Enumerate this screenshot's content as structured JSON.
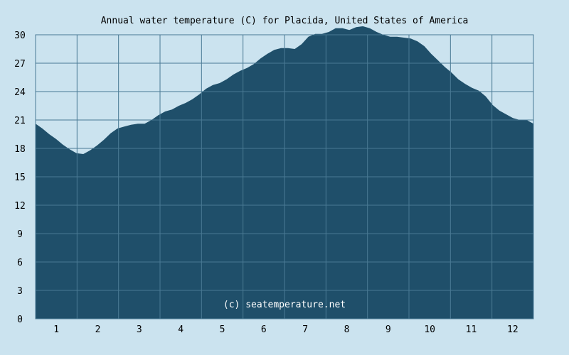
{
  "chart_data": {
    "type": "area",
    "title": "Annual water temperature (C) for Placida, United States of America",
    "xlabel": "",
    "ylabel": "",
    "x_tick_labels": [
      "1",
      "2",
      "3",
      "4",
      "5",
      "6",
      "7",
      "8",
      "9",
      "10",
      "11",
      "12"
    ],
    "y_ticks": [
      0,
      3,
      6,
      9,
      12,
      15,
      18,
      21,
      24,
      27,
      30
    ],
    "ylim": [
      0,
      30
    ],
    "xlim": [
      0,
      365
    ],
    "grid": true,
    "watermark": "(c) seatemperature.net",
    "colors": {
      "background": "#cbe3ef",
      "fill": "#1f4f6a",
      "grid": "#4a7a94"
    },
    "series": [
      {
        "x": [
          0,
          5,
          10,
          15,
          20,
          25,
          30,
          35,
          40,
          45,
          50,
          55,
          60,
          65,
          70,
          75,
          80,
          85,
          90,
          95,
          100,
          105,
          110,
          115,
          120,
          125,
          130,
          135,
          140,
          145,
          150,
          155,
          160,
          165,
          170,
          175,
          180,
          185,
          190,
          195,
          200,
          205,
          210,
          215,
          220,
          225,
          230,
          235,
          240,
          245,
          250,
          255,
          260,
          265,
          270,
          275,
          280,
          285,
          290,
          295,
          300,
          305,
          310,
          315,
          320,
          325,
          330,
          335,
          340,
          345,
          350,
          355,
          360,
          365
        ],
        "values": [
          20.6,
          20.1,
          19.5,
          19.0,
          18.4,
          17.9,
          17.5,
          17.4,
          17.8,
          18.3,
          18.9,
          19.6,
          20.1,
          20.3,
          20.5,
          20.6,
          20.6,
          21.0,
          21.5,
          21.9,
          22.1,
          22.5,
          22.8,
          23.2,
          23.7,
          24.3,
          24.7,
          24.9,
          25.3,
          25.8,
          26.2,
          26.5,
          26.9,
          27.5,
          28.0,
          28.4,
          28.6,
          28.6,
          28.5,
          29.0,
          29.8,
          30.1,
          30.1,
          30.3,
          30.7,
          30.7,
          30.5,
          30.8,
          30.9,
          30.7,
          30.3,
          30.0,
          29.8,
          29.8,
          29.7,
          29.6,
          29.3,
          28.8,
          28.0,
          27.3,
          26.6,
          26.0,
          25.3,
          24.8,
          24.4,
          24.1,
          23.5,
          22.6,
          22.0,
          21.6,
          21.2,
          21.0,
          21.0,
          20.6
        ]
      }
    ]
  }
}
